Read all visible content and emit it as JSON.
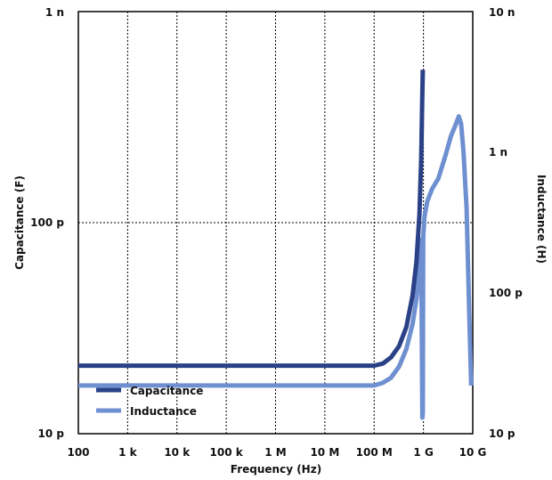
{
  "chart_data": {
    "type": "line",
    "xlabel": "Frequency (Hz)",
    "ylabel_left": "Capacitance (F)",
    "ylabel_right": "Inductance (H)",
    "x_scale": "log",
    "y_left_scale": "log",
    "y_right_scale": "log",
    "xlim": [
      100,
      10000000000
    ],
    "ylim_left": [
      1e-11,
      1e-09
    ],
    "ylim_right": [
      1e-11,
      1e-08
    ],
    "grid": true,
    "legend_position": "bottom-left",
    "x_ticks": [
      {
        "value": 100,
        "label": "100"
      },
      {
        "value": 1000,
        "label": "1 k"
      },
      {
        "value": 10000,
        "label": "10 k"
      },
      {
        "value": 100000,
        "label": "100 k"
      },
      {
        "value": 1000000,
        "label": "1 M"
      },
      {
        "value": 10000000,
        "label": "10 M"
      },
      {
        "value": 100000000,
        "label": "100 M"
      },
      {
        "value": 1000000000,
        "label": "1 G"
      },
      {
        "value": 10000000000,
        "label": "10 G"
      }
    ],
    "y_left_ticks": [
      {
        "value": 1e-11,
        "label": "10 p"
      },
      {
        "value": 1e-10,
        "label": "100 p"
      },
      {
        "value": 1e-09,
        "label": "1 n"
      }
    ],
    "y_right_ticks": [
      {
        "value": 1e-11,
        "label": "10 p"
      },
      {
        "value": 1e-10,
        "label": "100 p"
      },
      {
        "value": 1e-09,
        "label": "1 n"
      },
      {
        "value": 1e-08,
        "label": "10 n"
      }
    ],
    "series": [
      {
        "name": "Capacitance",
        "axis": "left",
        "color": "#2a4187",
        "x": [
          100,
          1000,
          10000,
          100000,
          1000000,
          10000000,
          100000000,
          150000000,
          220000000,
          320000000,
          450000000,
          600000000,
          720000000,
          830000000,
          900000000,
          940000000,
          970000000
        ],
        "y": [
          2.1e-11,
          2.1e-11,
          2.1e-11,
          2.1e-11,
          2.1e-11,
          2.1e-11,
          2.1e-11,
          2.15e-11,
          2.3e-11,
          2.6e-11,
          3.2e-11,
          4.5e-11,
          6.5e-11,
          1.1e-10,
          2e-10,
          3.6e-10,
          5.3e-10
        ]
      },
      {
        "name": "Inductance",
        "axis": "right",
        "color": "#6e8fd0",
        "x": [
          100,
          1000,
          10000,
          100000,
          1000000,
          10000000,
          100000000,
          150000000,
          220000000,
          320000000,
          450000000,
          600000000,
          720000000,
          830000000,
          900000000,
          950000000,
          970000000,
          990000000,
          1050000000,
          1200000000,
          1500000000,
          2000000000,
          2800000000,
          3600000000,
          4600000000,
          5200000000,
          5800000000,
          6500000000,
          7500000000,
          8500000000,
          9300000000
        ],
        "y": [
          2.2e-11,
          2.2e-11,
          2.2e-11,
          2.2e-11,
          2.2e-11,
          2.2e-11,
          2.2e-11,
          2.3e-11,
          2.5e-11,
          3e-11,
          4e-11,
          6e-11,
          9e-11,
          1.5e-10,
          2.4e-10,
          1.3e-11,
          1.4e-11,
          2.5e-10,
          3.5e-10,
          4.5e-10,
          5.5e-10,
          6.5e-10,
          9.5e-10,
          1.3e-09,
          1.6e-09,
          1.8e-09,
          1.6e-09,
          1e-09,
          4e-10,
          7e-11,
          2.2e-11
        ]
      }
    ]
  }
}
